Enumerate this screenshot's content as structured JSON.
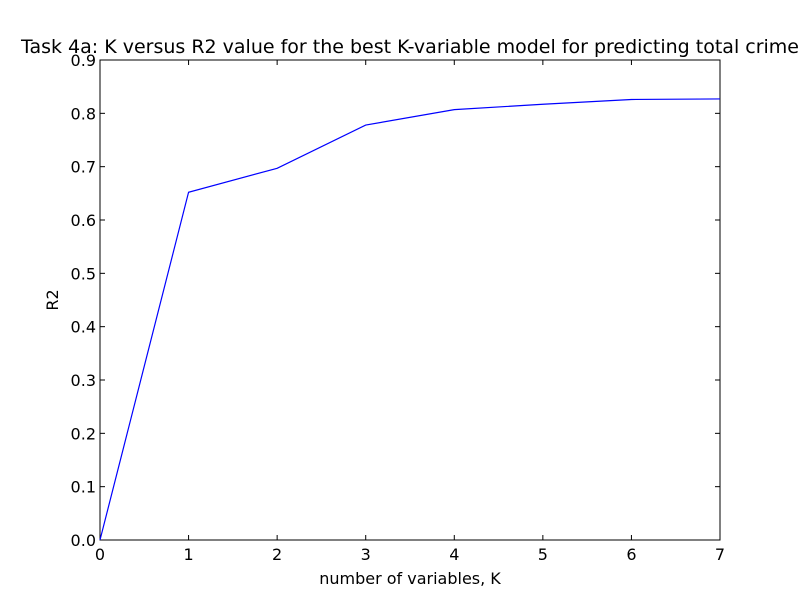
{
  "chart_data": {
    "type": "line",
    "title": "Task 4a: K versus R2 value for the best K-variable model for predicting total crime",
    "xlabel": "number of variables, K",
    "ylabel": "R2",
    "xlim": [
      0,
      7
    ],
    "ylim": [
      0,
      0.9
    ],
    "x_ticks": [
      "0",
      "1",
      "2",
      "3",
      "4",
      "5",
      "6",
      "7"
    ],
    "y_ticks": [
      "0.0",
      "0.1",
      "0.2",
      "0.3",
      "0.4",
      "0.5",
      "0.6",
      "0.7",
      "0.8",
      "0.9"
    ],
    "grid": false,
    "series": [
      {
        "color": "#0000ff",
        "x": [
          0,
          1,
          2,
          3,
          4,
          5,
          6,
          7
        ],
        "y": [
          0.0,
          0.652,
          0.697,
          0.778,
          0.807,
          0.817,
          0.826,
          0.827
        ]
      }
    ]
  }
}
